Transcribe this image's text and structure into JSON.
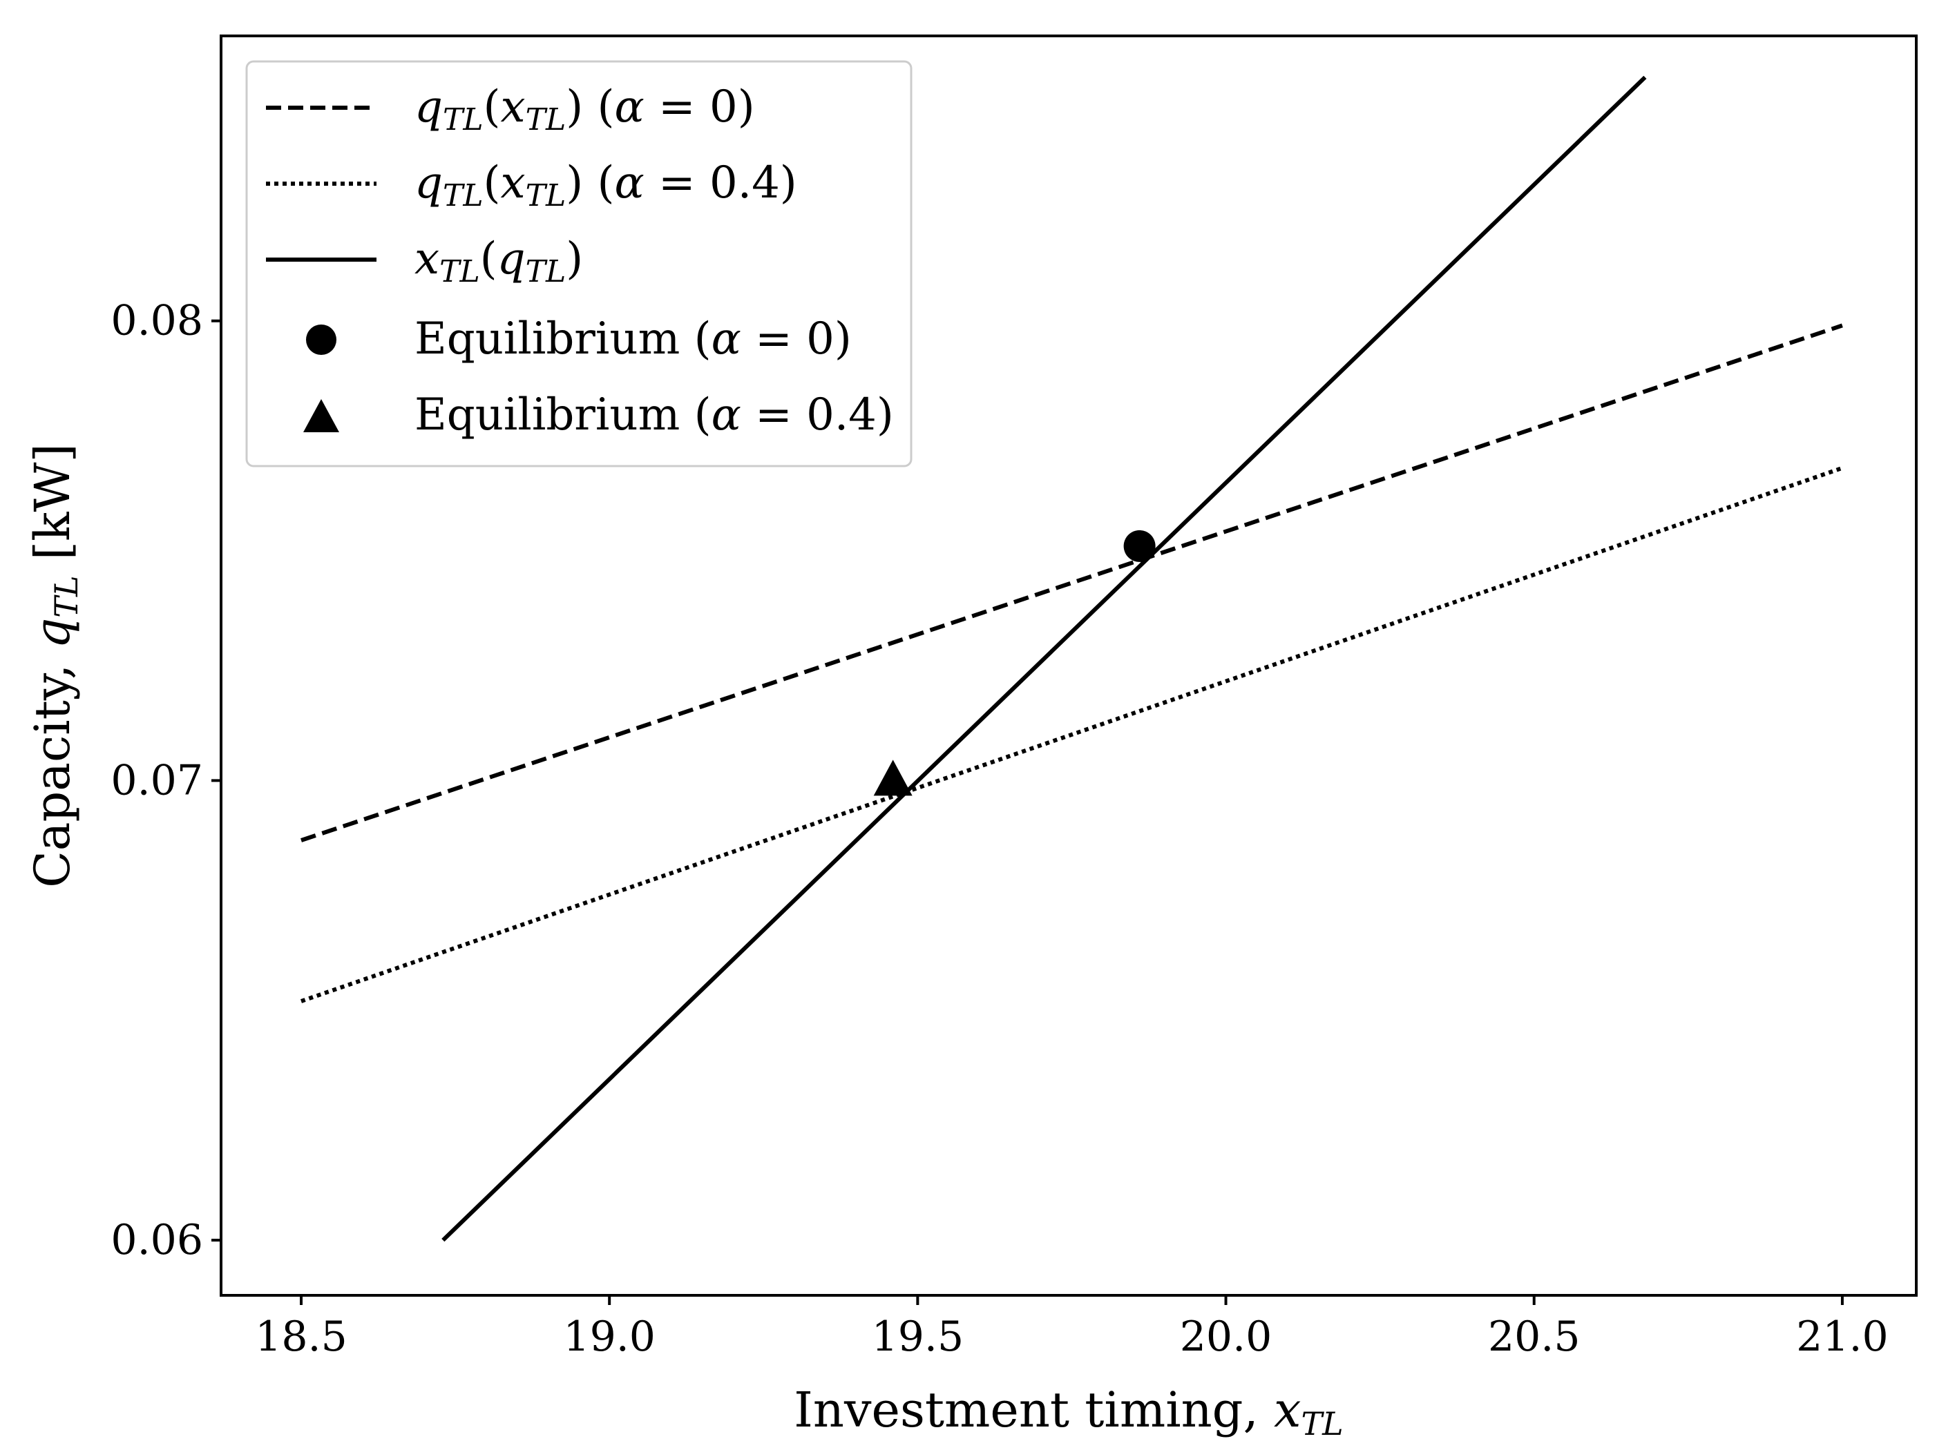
{
  "chart_data": {
    "type": "line",
    "title": "",
    "xlabel": "Investment timing, x_TL",
    "ylabel": "Capacity, q_TL [kW]",
    "xlim": [
      18.37,
      21.12
    ],
    "ylim": [
      0.0588,
      0.0862
    ],
    "xticks": [
      18.5,
      19.0,
      19.5,
      20.0,
      20.5,
      21.0
    ],
    "xtick_labels": [
      "18.5",
      "19.0",
      "19.5",
      "20.0",
      "20.5",
      "21.0"
    ],
    "yticks": [
      0.06,
      0.07,
      0.08
    ],
    "ytick_labels": [
      "0.06",
      "0.07",
      "0.08"
    ],
    "grid": false,
    "legend_position": "top-left",
    "series": [
      {
        "name": "q_TL(x_TL) (α = 0)",
        "style": "dashed",
        "color": "#000000",
        "x": [
          18.5,
          21.0
        ],
        "y": [
          0.0687,
          0.0799
        ]
      },
      {
        "name": "q_TL(x_TL) (α = 0.4)",
        "style": "dotted",
        "color": "#000000",
        "x": [
          18.5,
          21.0
        ],
        "y": [
          0.0652,
          0.0768
        ]
      },
      {
        "name": "x_TL(q_TL)",
        "style": "solid",
        "color": "#000000",
        "x": [
          18.73,
          20.68
        ],
        "y": [
          0.06,
          0.0853
        ]
      }
    ],
    "points": [
      {
        "name": "Equilibrium (α = 0)",
        "marker": "circle",
        "x": 19.86,
        "y": 0.0751
      },
      {
        "name": "Equilibrium (α = 0.4)",
        "marker": "triangle",
        "x": 19.46,
        "y": 0.07
      }
    ]
  }
}
